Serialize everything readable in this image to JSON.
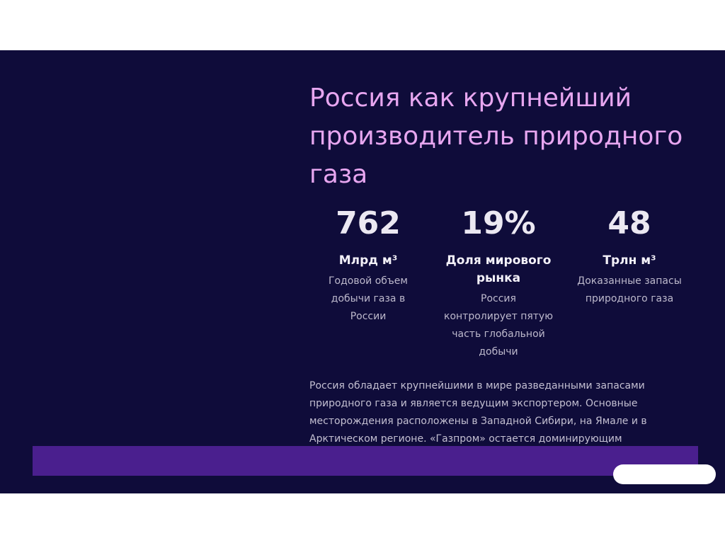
{
  "slide": {
    "title_lines": [
      "Россия как крупнейший",
      "производитель природного",
      "газа"
    ],
    "stats": [
      {
        "value": "762",
        "label_lines": [
          "Млрд м³"
        ],
        "desc_lines": [
          "Годовой объем",
          "добычи газа в",
          "России"
        ]
      },
      {
        "value": "19%",
        "label_lines": [
          "Доля мирового",
          "рынка"
        ],
        "desc_lines": [
          "Россия",
          "контролирует пятую",
          "часть глобальной",
          "добычи"
        ]
      },
      {
        "value": "48",
        "label_lines": [
          "Трлн м³"
        ],
        "desc_lines": [
          "Доказанные запасы",
          "природного газа"
        ]
      }
    ],
    "paragraph_lines": [
      "Россия обладает крупнейшими в мире разведанными запасами",
      "природного газа и является ведущим экспортером. Основные",
      "месторождения расположены в Западной Сибири, на Ямале и в",
      "Арктическом регионе. «Газпром» остается доминирующим"
    ],
    "colors": {
      "background": "#0f0c3a",
      "title": "#e7a6f0",
      "banner": "#4a1f8e"
    }
  }
}
